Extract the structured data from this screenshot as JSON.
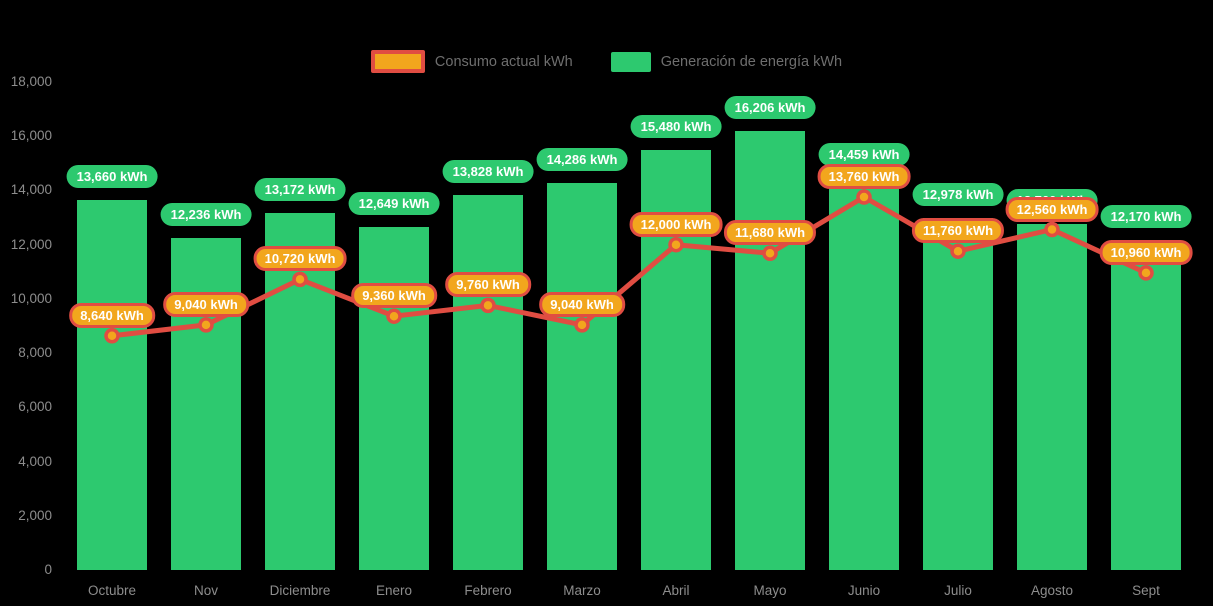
{
  "legend": {
    "consumo_label": "Consumo actual kWh",
    "generacion_label": "Generación de energía kWh"
  },
  "chart_data": {
    "type": "bar+line",
    "categories": [
      "Octubre",
      "Nov",
      "Diciembre",
      "Enero",
      "Febrero",
      "Marzo",
      "Abril",
      "Mayo",
      "Junio",
      "Julio",
      "Agosto",
      "Sept"
    ],
    "series": [
      {
        "name": "Generación de energía kWh",
        "type": "bar",
        "color": "#2dc96f",
        "values": [
          13660,
          12236,
          13172,
          12649,
          13828,
          14286,
          15480,
          16206,
          14459,
          12978,
          12760,
          12170
        ],
        "labels": [
          "13,660 kWh",
          "12,236 kWh",
          "13,172 kWh",
          "12,649 kWh",
          "13,828 kWh",
          "14,286 kWh",
          "15,480 kWh",
          "16,206 kWh",
          "14,459 kWh",
          "12,978 kWh",
          "12,760 kWh",
          "12,170 kWh"
        ]
      },
      {
        "name": "Consumo actual kWh",
        "type": "line",
        "color": "#e04d42",
        "marker_color": "#f2a61d",
        "values": [
          8640,
          9040,
          10720,
          9360,
          9760,
          9040,
          12000,
          11680,
          13760,
          11760,
          12560,
          10960
        ],
        "labels": [
          "8,640 kWh",
          "9,040 kWh",
          "10,720 kWh",
          "9,360 kWh",
          "9,760 kWh",
          "9,040 kWh",
          "12,000 kWh",
          "11,680 kWh",
          "13,760 kWh",
          "11,760 kWh",
          "12,560 kWh",
          "10,960 kWh"
        ]
      }
    ],
    "ylim": [
      0,
      18000
    ],
    "y_ticks": [
      "0",
      "2,000",
      "4,000",
      "6,000",
      "8,000",
      "10,000",
      "12,000",
      "14,000",
      "16,000",
      "18,000"
    ],
    "grid": false,
    "legend_position": "top",
    "background": "#000000"
  }
}
